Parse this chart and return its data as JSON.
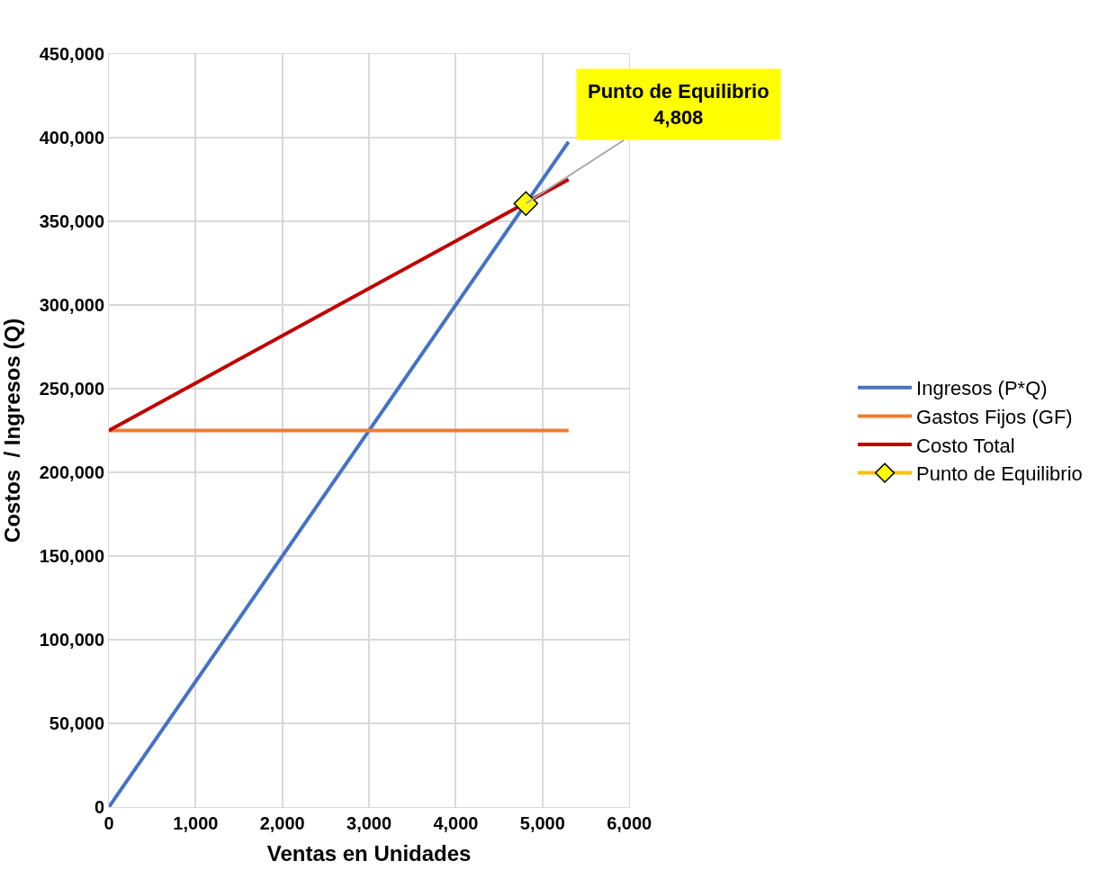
{
  "chart_data": {
    "type": "line",
    "xlabel": "Ventas en Unidades",
    "ylabel": "Costos  / Ingresos (Q)",
    "xlim": [
      0,
      6000
    ],
    "ylim": [
      0,
      450000
    ],
    "xticks": [
      0,
      {
        "value": 1000,
        "label": "1,000"
      },
      {
        "value": 2000,
        "label": "2,000"
      },
      {
        "value": 3000,
        "label": "3,000"
      },
      {
        "value": 4000,
        "label": "4,000"
      },
      {
        "value": 5000,
        "label": "5,000"
      },
      {
        "value": 6000,
        "label": "6,000"
      }
    ],
    "yticks": [
      0,
      {
        "value": 50000,
        "label": "50,000"
      },
      {
        "value": 100000,
        "label": "100,000"
      },
      {
        "value": 150000,
        "label": "150,000"
      },
      {
        "value": 200000,
        "label": "200,000"
      },
      {
        "value": 250000,
        "label": "250,000"
      },
      {
        "value": 300000,
        "label": "300,000"
      },
      {
        "value": 350000,
        "label": "350,000"
      },
      {
        "value": 400000,
        "label": "400,000"
      },
      {
        "value": 450000,
        "label": "450,000"
      }
    ],
    "grid": true,
    "legend": "right",
    "series": [
      {
        "name": "Ingresos (P*Q)",
        "color": "#4472c4",
        "x": [
          0,
          5300
        ],
        "values": [
          0,
          397500
        ]
      },
      {
        "name": "Gastos Fijos (GF)",
        "color": "#ed7d31",
        "x": [
          0,
          5300
        ],
        "values": [
          225000,
          225000
        ]
      },
      {
        "name": "Costo Total",
        "color": "#c00000",
        "x": [
          0,
          5300
        ],
        "values": [
          225000,
          375000
        ]
      },
      {
        "name": "Punto de Equilibrio",
        "type": "scatter",
        "marker": "diamond",
        "color": "#ffff00",
        "x": [
          4808
        ],
        "values": [
          360600
        ]
      }
    ],
    "annotations": [
      {
        "text": "Punto de Equilibrio\n4,808",
        "x": 4808,
        "y": 360600
      }
    ]
  }
}
